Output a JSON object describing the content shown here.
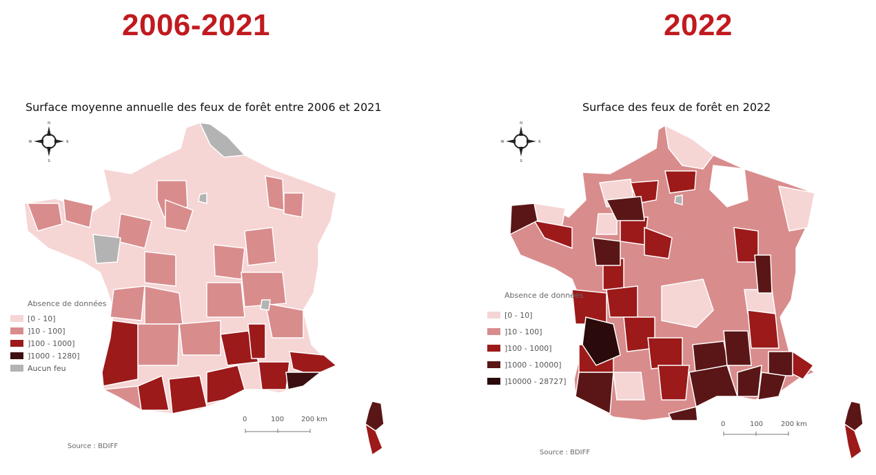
{
  "panels": [
    {
      "big_title": "2006-2021",
      "map_title": "Surface moyenne annuelle des feux de forêt entre 2006 et 2021",
      "legend_title": "Absence de données",
      "legend": [
        {
          "label": "[0 - 10]",
          "color": "#f6d5d5"
        },
        {
          "label": "]10 - 100]",
          "color": "#d98c8c"
        },
        {
          "label": "]100 - 1000]",
          "color": "#9c1a1a"
        },
        {
          "label": "]1000 - 1280]",
          "color": "#3c1010"
        },
        {
          "label": "Aucun feu",
          "color": "#b3b3b3"
        }
      ],
      "scale_labels": [
        "0",
        "100",
        "200 km"
      ],
      "source": "Source : BDIFF"
    },
    {
      "big_title": "2022",
      "map_title": "Surface des feux de forêt en 2022",
      "legend_title": "Absence de données",
      "legend": [
        {
          "label": "[0 - 10]",
          "color": "#f6d5d5"
        },
        {
          "label": "]10 - 100]",
          "color": "#d98c8c"
        },
        {
          "label": "]100 - 1000]",
          "color": "#9c1a1a"
        },
        {
          "label": "]1000 - 10000]",
          "color": "#5a1616"
        },
        {
          "label": "]10000 - 28727]",
          "color": "#2a0a0a"
        }
      ],
      "scale_labels": [
        "0",
        "100",
        "200 km"
      ],
      "source": "Source : BDIFF"
    }
  ],
  "compass": {
    "n": "N",
    "s": "S",
    "e": "E",
    "w": "W"
  },
  "colors": {
    "title_red": "#c01a1f",
    "light": "#f6d5d5",
    "medium": "#d98c8c",
    "strong": "#9c1a1a",
    "dark": "#5a1616",
    "darkest": "#2a0a0a",
    "grey": "#b3b3b3"
  }
}
